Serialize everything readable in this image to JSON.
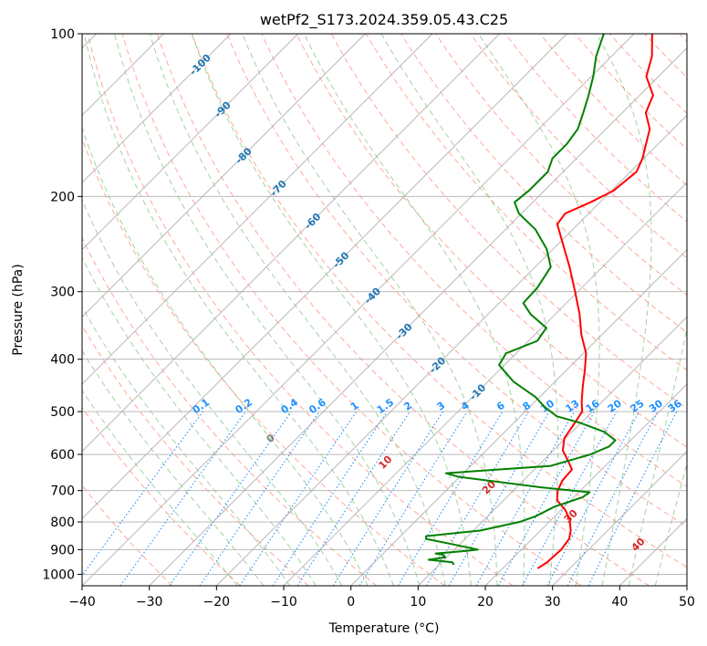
{
  "chart_data": {
    "type": "line",
    "title": "wetPf2_S173.2024.359.05.43.C25",
    "xlabel": "Temperature (°C)",
    "ylabel": "Pressure (hPa)",
    "xlim": [
      -40,
      50
    ],
    "ylim_hpa": [
      1050,
      100
    ],
    "y_scale": "log",
    "skew": "skew-T log-P diagram",
    "x_ticks": [
      -40,
      -30,
      -20,
      -10,
      0,
      10,
      20,
      30,
      40,
      50
    ],
    "x_tick_labels": [
      "−40",
      "−30",
      "−20",
      "−10",
      "0",
      "10",
      "20",
      "30",
      "40",
      "50"
    ],
    "y_ticks": [
      1000,
      900,
      800,
      700,
      600,
      500,
      400,
      300,
      200,
      100
    ],
    "y_tick_labels": [
      "1000",
      "900",
      "800",
      "700",
      "600",
      "500",
      "400",
      "300",
      "200",
      "100"
    ],
    "grid": true,
    "colors": {
      "temperature": "#ff0000",
      "dewpoint": "#008000",
      "dry_adiabats": "#ff6347",
      "moist_adiabats": "#2ca02c",
      "mixing_ratio": "#1e90ff",
      "isotherm_labels": "#1f77b4",
      "grid": "#b0b0b0"
    },
    "series": [
      {
        "name": "temperature",
        "points": [
          {
            "p": 975,
            "t": 25.2
          },
          {
            "p": 950,
            "t": 25.7
          },
          {
            "p": 900,
            "t": 25.9
          },
          {
            "p": 860,
            "t": 25.5
          },
          {
            "p": 830,
            "t": 24.5
          },
          {
            "p": 790,
            "t": 22.6
          },
          {
            "p": 760,
            "t": 20.6
          },
          {
            "p": 730,
            "t": 18.0
          },
          {
            "p": 700,
            "t": 16.6
          },
          {
            "p": 670,
            "t": 15.8
          },
          {
            "p": 640,
            "t": 15.6
          },
          {
            "p": 620,
            "t": 14.0
          },
          {
            "p": 590,
            "t": 11.4
          },
          {
            "p": 560,
            "t": 9.8
          },
          {
            "p": 530,
            "t": 9.2
          },
          {
            "p": 500,
            "t": 8.5
          },
          {
            "p": 480,
            "t": 7.0
          },
          {
            "p": 450,
            "t": 4.9
          },
          {
            "p": 420,
            "t": 2.8
          },
          {
            "p": 390,
            "t": 0.4
          },
          {
            "p": 360,
            "t": -3.1
          },
          {
            "p": 330,
            "t": -6.4
          },
          {
            "p": 300,
            "t": -10.4
          },
          {
            "p": 270,
            "t": -14.9
          },
          {
            "p": 240,
            "t": -20.2
          },
          {
            "p": 225,
            "t": -23.1
          },
          {
            "p": 215,
            "t": -23.5
          },
          {
            "p": 205,
            "t": -21.4
          },
          {
            "p": 195,
            "t": -19.7
          },
          {
            "p": 180,
            "t": -19.1
          },
          {
            "p": 170,
            "t": -20.2
          },
          {
            "p": 150,
            "t": -23.5
          },
          {
            "p": 140,
            "t": -26.5
          },
          {
            "p": 130,
            "t": -28.0
          },
          {
            "p": 120,
            "t": -31.8
          },
          {
            "p": 110,
            "t": -34.0
          },
          {
            "p": 100,
            "t": -37.3
          }
        ]
      },
      {
        "name": "dewpoint",
        "points": [
          {
            "p": 960,
            "t": 12.2
          },
          {
            "p": 950,
            "t": 11.6
          },
          {
            "p": 940,
            "t": 7.7
          },
          {
            "p": 930,
            "t": 9.8
          },
          {
            "p": 920,
            "t": 9.1
          },
          {
            "p": 915,
            "t": 7.8
          },
          {
            "p": 905,
            "t": 12.0
          },
          {
            "p": 900,
            "t": 13.5
          },
          {
            "p": 880,
            "t": 9.0
          },
          {
            "p": 860,
            "t": 4.2
          },
          {
            "p": 850,
            "t": 3.8
          },
          {
            "p": 830,
            "t": 11.0
          },
          {
            "p": 800,
            "t": 15.6
          },
          {
            "p": 780,
            "t": 17.2
          },
          {
            "p": 750,
            "t": 18.5
          },
          {
            "p": 720,
            "t": 21.3
          },
          {
            "p": 705,
            "t": 21.6
          },
          {
            "p": 690,
            "t": 13.5
          },
          {
            "p": 660,
            "t": -0.2
          },
          {
            "p": 650,
            "t": -2.6
          },
          {
            "p": 630,
            "t": 11.9
          },
          {
            "p": 600,
            "t": 16.1
          },
          {
            "p": 580,
            "t": 17.7
          },
          {
            "p": 565,
            "t": 17.7
          },
          {
            "p": 545,
            "t": 14.8
          },
          {
            "p": 525,
            "t": 10.0
          },
          {
            "p": 510,
            "t": 5.4
          },
          {
            "p": 490,
            "t": 2.2
          },
          {
            "p": 470,
            "t": -0.6
          },
          {
            "p": 440,
            "t": -6.2
          },
          {
            "p": 410,
            "t": -10.8
          },
          {
            "p": 390,
            "t": -11.5
          },
          {
            "p": 370,
            "t": -8.7
          },
          {
            "p": 350,
            "t": -9.3
          },
          {
            "p": 330,
            "t": -13.7
          },
          {
            "p": 315,
            "t": -16.4
          },
          {
            "p": 295,
            "t": -16.6
          },
          {
            "p": 270,
            "t": -17.7
          },
          {
            "p": 250,
            "t": -21.0
          },
          {
            "p": 230,
            "t": -25.6
          },
          {
            "p": 215,
            "t": -30.4
          },
          {
            "p": 205,
            "t": -32.7
          },
          {
            "p": 195,
            "t": -32.3
          },
          {
            "p": 180,
            "t": -32.3
          },
          {
            "p": 170,
            "t": -33.6
          },
          {
            "p": 160,
            "t": -33.6
          },
          {
            "p": 150,
            "t": -34.2
          },
          {
            "p": 140,
            "t": -35.8
          },
          {
            "p": 130,
            "t": -37.6
          },
          {
            "p": 120,
            "t": -39.7
          },
          {
            "p": 110,
            "t": -42.3
          },
          {
            "p": 100,
            "t": -44.5
          }
        ]
      }
    ],
    "isotherm_labels": [
      {
        "text": "-100",
        "t": -100,
        "p": 114
      },
      {
        "text": "-90",
        "t": -90,
        "p": 138
      },
      {
        "text": "-80",
        "t": -80,
        "p": 168
      },
      {
        "text": "-70",
        "t": -70,
        "p": 193
      },
      {
        "text": "-60",
        "t": -60,
        "p": 222
      },
      {
        "text": "-50",
        "t": -50,
        "p": 262
      },
      {
        "text": "-40",
        "t": -40,
        "p": 305
      },
      {
        "text": "-30",
        "t": -30,
        "p": 355
      },
      {
        "text": "-20",
        "t": -20,
        "p": 410
      },
      {
        "text": "-10",
        "t": -10,
        "p": 460
      }
    ],
    "mixing_ratio_labels": [
      "0.1",
      "0.2",
      "0.4",
      "0.6",
      "1",
      "1.5",
      "2",
      "3",
      "4",
      "6",
      "8",
      "10",
      "13",
      "16",
      "20",
      "25",
      "30",
      "36"
    ],
    "mixing_ratio_values": [
      0.1,
      0.2,
      0.4,
      0.6,
      1,
      1.5,
      2,
      3,
      4,
      6,
      8,
      10,
      13,
      16,
      20,
      25,
      30,
      36
    ],
    "mixing_ratio_label_pressure": 500,
    "moist_adiabat_labels": [
      {
        "text": "0",
        "t": 0,
        "color": "#808080"
      },
      {
        "text": "10",
        "t": 10,
        "color": "#d62728"
      },
      {
        "text": "20",
        "t": 20,
        "color": "#d62728"
      },
      {
        "text": "30",
        "t": 30,
        "color": "#d62728"
      },
      {
        "text": "40",
        "t": 40,
        "color": "#d62728"
      }
    ]
  }
}
